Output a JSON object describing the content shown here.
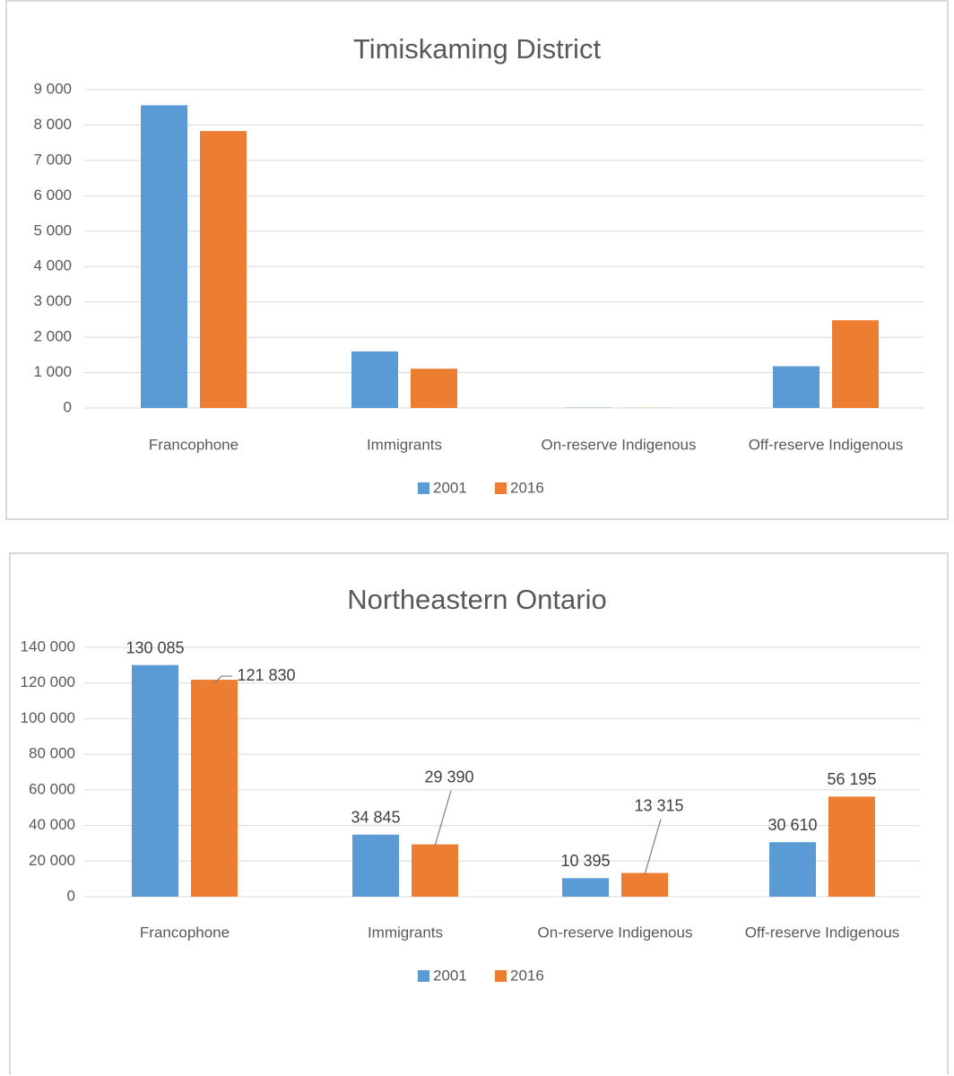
{
  "chart_data": [
    {
      "type": "bar",
      "title": "Timiskaming District",
      "categories": [
        "Francophone",
        "Immigrants",
        "On-reserve Indigenous",
        "Off-reserve Indigenous"
      ],
      "series": [
        {
          "name": "2001",
          "values": [
            8560,
            1600,
            10,
            1180
          ],
          "color": "#5b9bd5"
        },
        {
          "name": "2016",
          "values": [
            7830,
            1110,
            5,
            2480
          ],
          "color": "#ed7d31"
        }
      ],
      "ylim": [
        0,
        9000
      ],
      "yticks": [
        0,
        1000,
        2000,
        3000,
        4000,
        5000,
        6000,
        7000,
        8000,
        9000
      ],
      "ytick_labels": [
        "0",
        "1 000",
        "2 000",
        "3 000",
        "4 000",
        "5 000",
        "6 000",
        "7 000",
        "8 000",
        "9 000"
      ],
      "xlabel": "",
      "ylabel": "",
      "grid": true,
      "legend": "bottom",
      "data_labels": []
    },
    {
      "type": "bar",
      "title": "Northeastern Ontario",
      "categories": [
        "Francophone",
        "Immigrants",
        "On-reserve Indigenous",
        "Off-reserve Indigenous"
      ],
      "series": [
        {
          "name": "2001",
          "values": [
            130085,
            34845,
            10395,
            30610
          ],
          "color": "#5b9bd5"
        },
        {
          "name": "2016",
          "values": [
            121830,
            29390,
            13315,
            56195
          ],
          "color": "#ed7d31"
        }
      ],
      "ylim": [
        0,
        140000
      ],
      "yticks": [
        0,
        20000,
        40000,
        60000,
        80000,
        100000,
        120000,
        140000
      ],
      "ytick_labels": [
        "0",
        "20 000",
        "40 000",
        "60 000",
        "80 000",
        "100 000",
        "120 000",
        "140 000"
      ],
      "xlabel": "",
      "ylabel": "",
      "grid": true,
      "legend": "bottom",
      "data_labels": [
        [
          "130 085",
          "34 845",
          "10 395",
          "30 610"
        ],
        [
          "121 830",
          "29 390",
          "13 315",
          "56 195"
        ]
      ]
    }
  ]
}
